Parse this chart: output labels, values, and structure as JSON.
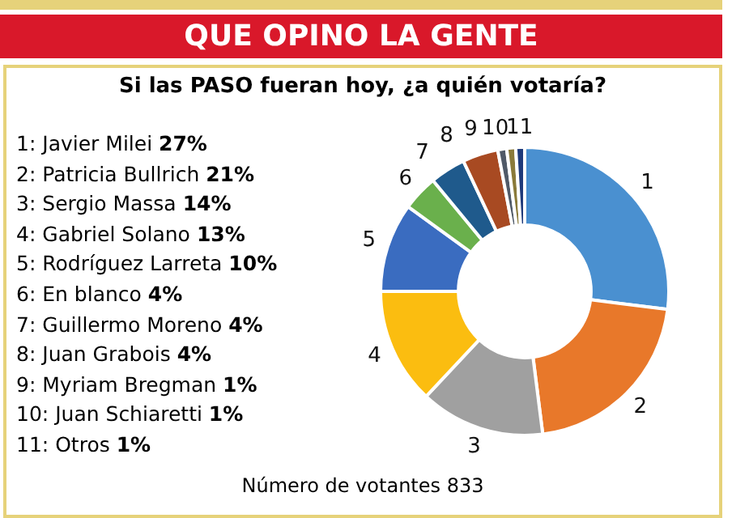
{
  "chart_data": {
    "type": "donut",
    "title": "QUE OPINO LA GENTE",
    "subtitle": "Si las PASO fueran hoy, ¿a quién votaría?",
    "categories": [
      "1",
      "2",
      "3",
      "4",
      "5",
      "6",
      "7",
      "8",
      "9",
      "10",
      "11"
    ],
    "values": [
      27,
      21,
      14,
      13,
      10,
      4,
      4,
      4,
      1,
      1,
      1
    ],
    "colors": [
      "#4a90d0",
      "#e8782a",
      "#a0a0a0",
      "#fbbd10",
      "#3a6cc0",
      "#6ab04c",
      "#1f5a8c",
      "#a84a22",
      "#505a68",
      "#8a7a3a",
      "#1f3a7a"
    ],
    "annotations": [
      "1: Javier Milei 27%",
      "2: Patricia Bullrich 21%",
      "3: Sergio Massa 14%",
      "4: Gabriel Solano 13%",
      "5: Rodríguez Larreta 10%",
      "6: En blanco 4%",
      "7: Guillermo Moreno 4%",
      "8: Juan Grabois 4%",
      "9: Myriam Bregman 1%",
      "10: Juan Schiaretti 1%",
      "11: Otros 1%",
      "Número de votantes 833"
    ]
  }
}
